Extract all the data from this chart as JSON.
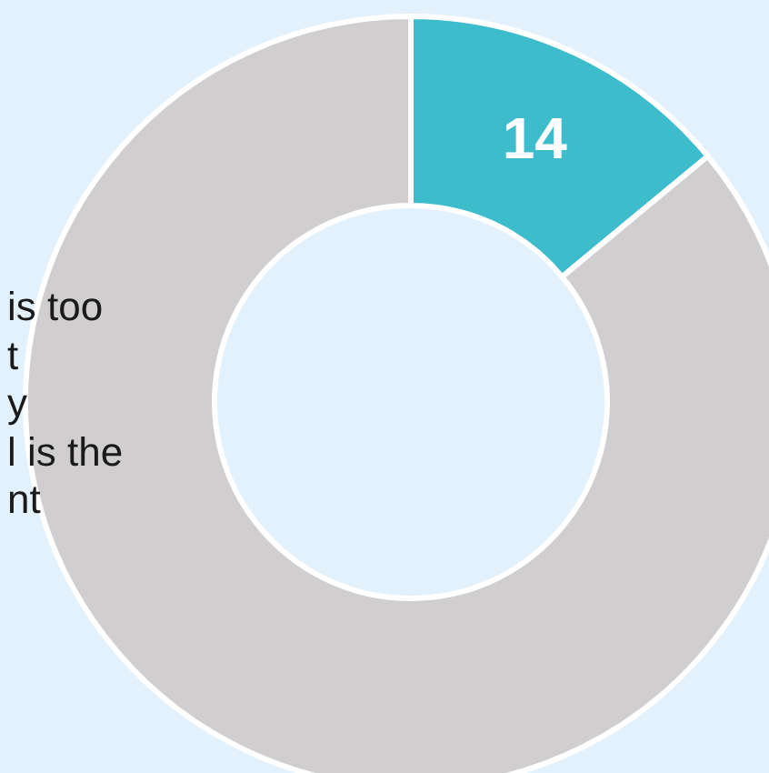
{
  "chart_data": {
    "type": "donut",
    "categories": [
      null,
      null
    ],
    "values": [
      14,
      86
    ],
    "colors": [
      "#3dbccb",
      "#d0cece"
    ],
    "value_labels": [
      "14",
      null
    ],
    "annotations": [
      "is too",
      "t",
      "y",
      "l is the",
      "nt"
    ],
    "legend": false
  }
}
